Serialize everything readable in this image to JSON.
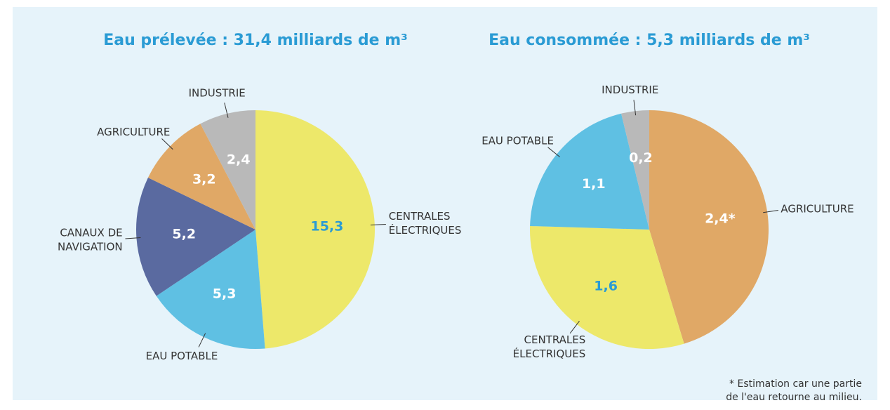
{
  "chart_data": [
    {
      "type": "pie",
      "title": "Eau prélevée : 31,4 milliards de m³",
      "categories": [
        "CENTRALES ÉLECTRIQUES",
        "EAU POTABLE",
        "CANAUX DE NAVIGATION",
        "AGRICULTURE",
        "INDUSTRIE"
      ],
      "values": [
        15.3,
        5.3,
        5.2,
        3.2,
        2.4
      ],
      "value_labels": [
        "15,3",
        "5,3",
        "5,2",
        "3,2",
        "2,4"
      ],
      "colors": [
        "#ede86a",
        "#5fc0e3",
        "#5a6aa0",
        "#e0a866",
        "#b9b9b9"
      ],
      "value_label_colors": [
        "#2a9bd4",
        "#ffffff",
        "#ffffff",
        "#ffffff",
        "#ffffff"
      ]
    },
    {
      "type": "pie",
      "title": "Eau consommée : 5,3 milliards de m³",
      "categories": [
        "AGRICULTURE",
        "CENTRALES ÉLECTRIQUES",
        "EAU POTABLE",
        "INDUSTRIE"
      ],
      "values": [
        2.4,
        1.6,
        1.1,
        0.2
      ],
      "value_labels": [
        "2,4*",
        "1,6",
        "1,1",
        "0,2"
      ],
      "colors": [
        "#e0a866",
        "#ede86a",
        "#5fc0e3",
        "#b9b9b9"
      ],
      "value_label_colors": [
        "#ffffff",
        "#2a9bd4",
        "#ffffff",
        "#ffffff"
      ],
      "annotation": "* Estimation car une partie de l'eau retourne au milieu."
    }
  ]
}
